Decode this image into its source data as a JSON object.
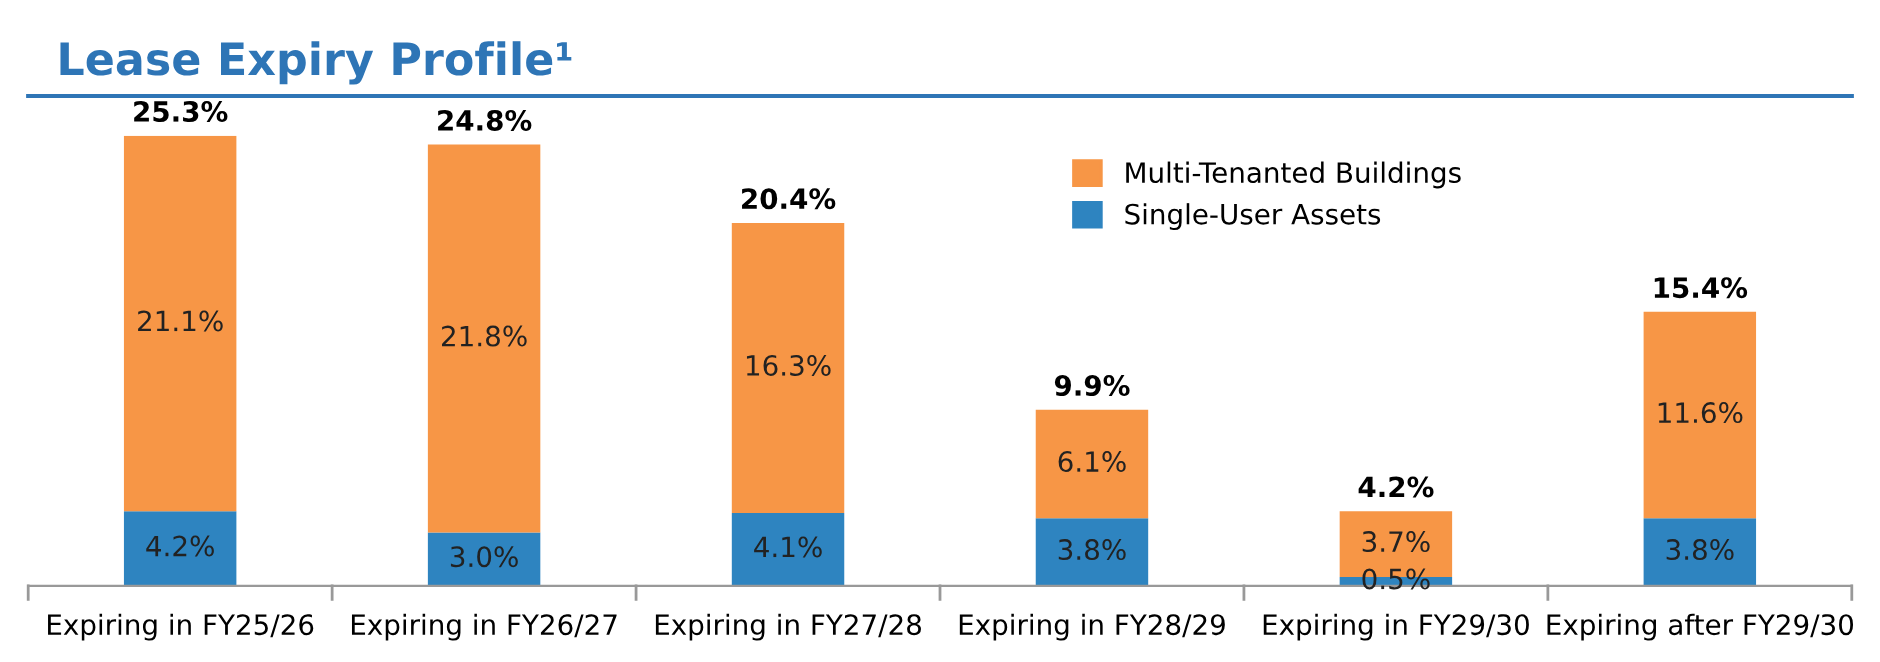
{
  "chart_data": {
    "type": "bar",
    "title": "Lease Expiry Profile¹",
    "stacked": true,
    "legend": "top right",
    "grid": false,
    "categories": [
      "Expiring in FY25/26",
      "Expiring in FY26/27",
      "Expiring in FY27/28",
      "Expiring in FY28/29",
      "Expiring in FY29/30",
      "Expiring after FY29/30"
    ],
    "series": [
      {
        "name": "Single-User Assets",
        "color": "#2e84c0",
        "values": [
          4.2,
          3.0,
          4.1,
          3.8,
          0.5,
          3.8
        ],
        "value_labels": [
          "4.2%",
          "3.0%",
          "4.1%",
          "3.8%",
          "0.5%",
          "3.8%"
        ]
      },
      {
        "name": "Multi-Tenanted Buildings",
        "color": "#f79646",
        "values": [
          21.1,
          21.8,
          16.3,
          6.1,
          3.7,
          11.6
        ],
        "value_labels": [
          "21.1%",
          "21.8%",
          "16.3%",
          "6.1%",
          "3.7%",
          "11.6%"
        ]
      }
    ],
    "totals": [
      "25.3%",
      "24.8%",
      "20.4%",
      "9.9%",
      "4.2%",
      "15.4%"
    ]
  }
}
